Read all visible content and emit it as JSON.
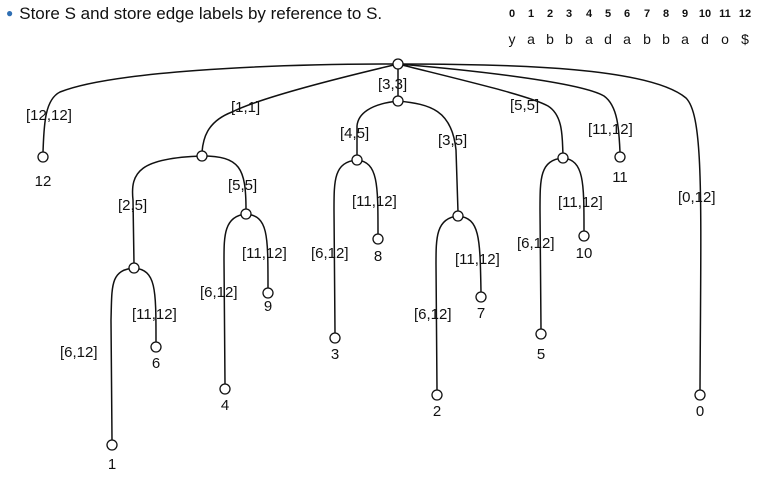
{
  "bullet_text": "Store S and store edge labels by reference to S.",
  "string_table": {
    "indices": [
      "0",
      "1",
      "2",
      "3",
      "4",
      "5",
      "6",
      "7",
      "8",
      "9",
      "10",
      "11",
      "12"
    ],
    "chars": [
      "y",
      "a",
      "b",
      "b",
      "a",
      "d",
      "a",
      "b",
      "b",
      "a",
      "d",
      "o",
      "$"
    ]
  },
  "edge_labels": {
    "root_to_leaf12": "[12,12]",
    "root_to_a": "[1,1]",
    "root_to_b": "[3,3]",
    "root_to_d": "[5,5]",
    "root_to_leaf11": "[11,12]",
    "root_to_leaf0": "[0,12]",
    "a_to_abbad": "[2,5]",
    "a_to_ad": "[5,5]",
    "abbad_to_leaf1": "[6,12]",
    "abbad_to_leaf6": "[11,12]",
    "ad_to_leaf4": "[6,12]",
    "ad_to_leaf9": "[11,12]",
    "b_to_bad": "[4,5]",
    "b_to_bbad": "[3,5]",
    "bad_to_leaf3": "[6,12]",
    "bad_to_leaf8": "[11,12]",
    "bbad_to_leaf2": "[6,12]",
    "bbad_to_leaf7": "[11,12]",
    "d_to_leaf5": "[6,12]",
    "d_to_leaf10": "[11,12]"
  },
  "leaf_labels": {
    "leaf0": "0",
    "leaf1": "1",
    "leaf2": "2",
    "leaf3": "3",
    "leaf4": "4",
    "leaf5": "5",
    "leaf6": "6",
    "leaf7": "7",
    "leaf8": "8",
    "leaf9": "9",
    "leaf10": "10",
    "leaf11": "11",
    "leaf12": "12"
  }
}
